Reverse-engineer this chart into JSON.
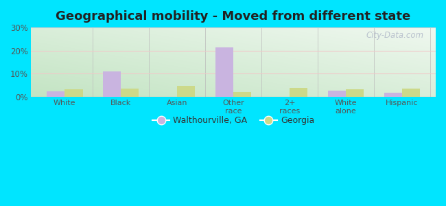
{
  "title": "Geographical mobility - Moved from different state",
  "categories": [
    "White",
    "Black",
    "Asian",
    "Other\nrace",
    "2+\nraces",
    "White\nalone",
    "Hispanic"
  ],
  "walthourville": [
    2.5,
    11.0,
    0.0,
    21.5,
    0.0,
    2.8,
    1.8
  ],
  "georgia": [
    3.2,
    3.7,
    4.8,
    2.0,
    3.8,
    3.2,
    3.5
  ],
  "bar_color_walthourville": "#c9b4e0",
  "bar_color_georgia": "#ccd98a",
  "ylim": [
    0,
    30
  ],
  "yticks": [
    0,
    10,
    20,
    30
  ],
  "ytick_labels": [
    "0%",
    "10%",
    "20%",
    "30%"
  ],
  "legend_labels": [
    "Walthourville, GA",
    "Georgia"
  ],
  "background_outer": "#00e5ff",
  "title_fontsize": 13,
  "watermark": "City-Data.com",
  "grid_color": "#f0c8c8",
  "bg_gradient_top_left": "#d5ecd5",
  "bg_gradient_bottom_right": "#f0f8f0"
}
